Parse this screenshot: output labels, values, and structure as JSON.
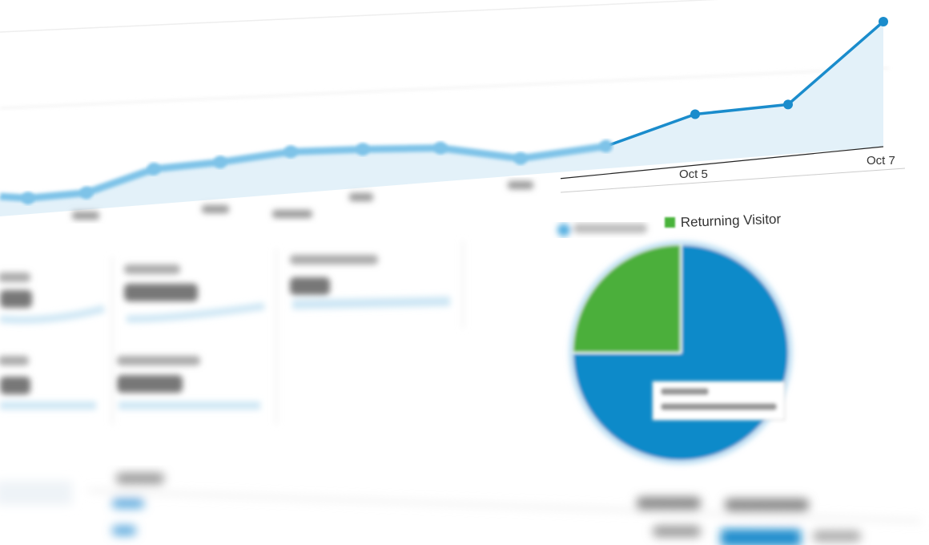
{
  "chart_data": [
    {
      "type": "area",
      "categories": [
        "",
        "",
        "",
        "",
        "",
        "",
        "",
        "",
        "",
        "Oct 5",
        "",
        "Oct 7"
      ],
      "tick_labels": [
        "Oct 5",
        "Oct 7"
      ],
      "values": [
        20,
        21,
        44,
        46,
        52,
        48,
        42,
        21,
        28,
        59,
        62,
        156
      ],
      "color": "#1a8ccc",
      "fill_color": "#e3f1f9",
      "grid": true
    },
    {
      "type": "pie",
      "legend": [
        "",
        "Returning Visitor"
      ],
      "legend_placement": "top",
      "slices": [
        {
          "label": "",
          "value": 75,
          "color": "#0f8ac9"
        },
        {
          "label": "Returning Visitor",
          "value": 25,
          "color": "#4caf3a"
        }
      ]
    }
  ]
}
